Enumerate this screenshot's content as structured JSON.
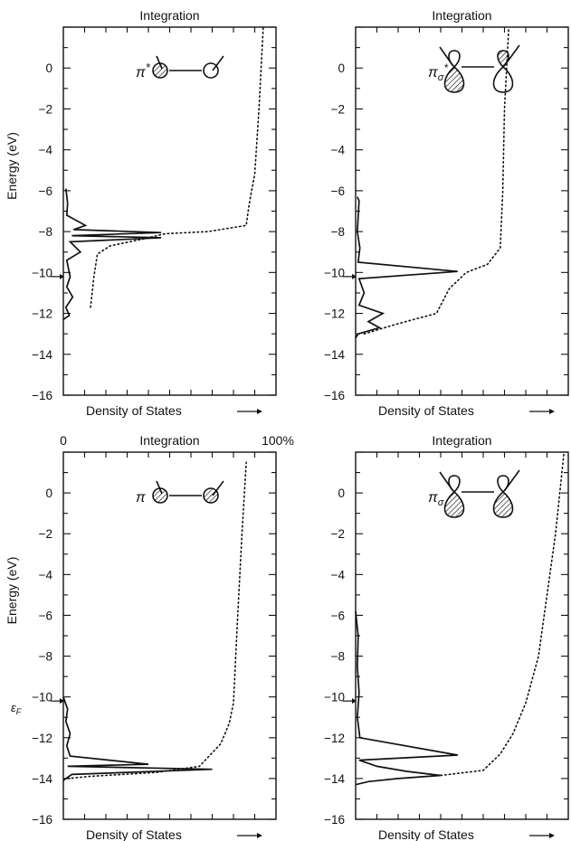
{
  "chart_data": [
    {
      "type": "line",
      "panel": "top-left",
      "top_label": "Integration",
      "xlabel": "Density of States",
      "ylabel": "Energy (eV)",
      "ylim": [
        -16,
        2
      ],
      "yticks": [
        0,
        -2,
        -4,
        -6,
        -8,
        -10,
        -12,
        -14,
        -16
      ],
      "orbital_label": "π*",
      "series": [
        {
          "values": [
            [
              0.3,
              -5.9
            ],
            [
              0.5,
              -6.6
            ],
            [
              0.4,
              -7.2
            ],
            [
              2.6,
              -7.7
            ],
            [
              1.2,
              -7.9
            ],
            [
              11.5,
              -8.05
            ],
            [
              1.0,
              -8.2
            ],
            [
              11.5,
              -8.3
            ],
            [
              0.8,
              -8.5
            ],
            [
              2.0,
              -9.0
            ],
            [
              0.4,
              -9.4
            ],
            [
              0.8,
              -10.2
            ],
            [
              0.4,
              -10.7
            ],
            [
              1.1,
              -11.2
            ],
            [
              0.3,
              -11.7
            ],
            [
              0.7,
              -12.1
            ],
            [
              0,
              -12.3
            ]
          ]
        },
        {
          "values": [
            [
              3.2,
              -11.7
            ],
            [
              3.6,
              -10.2
            ],
            [
              4.0,
              -9.1
            ],
            [
              5.5,
              -8.7
            ],
            [
              9.5,
              -8.35
            ],
            [
              12.0,
              -8.1
            ],
            [
              17.0,
              -8.0
            ],
            [
              21.5,
              -7.7
            ],
            [
              21.8,
              -6.8
            ],
            [
              22.0,
              -6.3
            ],
            [
              22.5,
              -5.2
            ],
            [
              23.0,
              -2.0
            ],
            [
              23.5,
              2.0
            ]
          ]
        }
      ]
    },
    {
      "type": "line",
      "panel": "top-right",
      "top_label": "Integration",
      "xlabel": "Density of States",
      "ylabel": "",
      "ylim": [
        -16,
        2
      ],
      "yticks": [
        0,
        -2,
        -4,
        -6,
        -8,
        -10,
        -12,
        -14,
        -16
      ],
      "orbital_label": "πσ*",
      "series": [
        {
          "values": [
            [
              0.2,
              -6.3
            ],
            [
              0.4,
              -6.5
            ],
            [
              0.2,
              -8.0
            ],
            [
              0.5,
              -8.8
            ],
            [
              0.3,
              -9.5
            ],
            [
              12.0,
              -9.95
            ],
            [
              0.4,
              -10.3
            ],
            [
              1.0,
              -11.0
            ],
            [
              0.4,
              -11.6
            ],
            [
              3.2,
              -12.0
            ],
            [
              1.5,
              -12.4
            ],
            [
              2.8,
              -12.7
            ],
            [
              0.3,
              -13.0
            ],
            [
              0,
              -13.2
            ]
          ]
        },
        {
          "values": [
            [
              1.0,
              -13.0
            ],
            [
              5.0,
              -12.5
            ],
            [
              9.5,
              -12.0
            ],
            [
              11.0,
              -10.8
            ],
            [
              13.0,
              -10.0
            ],
            [
              15.5,
              -9.6
            ],
            [
              17.0,
              -8.8
            ],
            [
              17.3,
              -6.0
            ],
            [
              17.5,
              -2.0
            ],
            [
              18.0,
              2.0
            ]
          ]
        }
      ]
    },
    {
      "type": "line",
      "panel": "bottom-left",
      "top_label": "Integration",
      "xlabel": "Density of States",
      "ylabel": "Energy (eV)",
      "ylim": [
        -16,
        2
      ],
      "yticks": [
        0,
        -2,
        -4,
        -6,
        -8,
        -10,
        -12,
        -14,
        -16
      ],
      "x_end_labels": [
        "0",
        "100%"
      ],
      "fermi_label": "εF",
      "orbital_label": "π",
      "series": [
        {
          "values": [
            [
              0,
              -10.0
            ],
            [
              0.5,
              -10.6
            ],
            [
              0.3,
              -11.2
            ],
            [
              0.8,
              -11.8
            ],
            [
              0.4,
              -12.4
            ],
            [
              0.8,
              -12.9
            ],
            [
              10.0,
              -13.3
            ],
            [
              0.5,
              -13.4
            ],
            [
              17.5,
              -13.55
            ],
            [
              1.0,
              -13.8
            ],
            [
              0.3,
              -14.0
            ],
            [
              0,
              -14.1
            ]
          ]
        },
        {
          "values": [
            [
              0.5,
              -14.0
            ],
            [
              3.0,
              -13.9
            ],
            [
              11.0,
              -13.7
            ],
            [
              16.0,
              -13.4
            ],
            [
              18.5,
              -12.3
            ],
            [
              19.5,
              -11.3
            ],
            [
              20.0,
              -10.3
            ],
            [
              20.5,
              -6.0
            ],
            [
              21.0,
              -2.0
            ],
            [
              21.5,
              1.5
            ]
          ]
        }
      ]
    },
    {
      "type": "line",
      "panel": "bottom-right",
      "top_label": "Integration",
      "xlabel": "Density of States",
      "ylabel": "",
      "ylim": [
        -16,
        2
      ],
      "yticks": [
        0,
        -2,
        -4,
        -6,
        -8,
        -10,
        -12,
        -14,
        -16
      ],
      "orbital_label": "πσ",
      "series": [
        {
          "values": [
            [
              0,
              -5.8
            ],
            [
              0.3,
              -7.0
            ],
            [
              0.2,
              -8.5
            ],
            [
              0.4,
              -9.8
            ],
            [
              0.2,
              -11.0
            ],
            [
              0.5,
              -12.0
            ],
            [
              12.0,
              -12.85
            ],
            [
              0.4,
              -13.1
            ],
            [
              2.5,
              -13.4
            ],
            [
              6.0,
              -13.65
            ],
            [
              10.0,
              -13.85
            ],
            [
              5.0,
              -14.0
            ],
            [
              1.5,
              -14.15
            ],
            [
              0,
              -14.3
            ]
          ]
        },
        {
          "values": [
            [
              10.0,
              -13.85
            ],
            [
              15.0,
              -13.6
            ],
            [
              17.0,
              -12.8
            ],
            [
              18.5,
              -11.8
            ],
            [
              20.0,
              -10.3
            ],
            [
              21.5,
              -8.0
            ],
            [
              22.5,
              -5.0
            ],
            [
              23.5,
              -2.0
            ],
            [
              24.5,
              2.0
            ]
          ]
        }
      ]
    }
  ]
}
